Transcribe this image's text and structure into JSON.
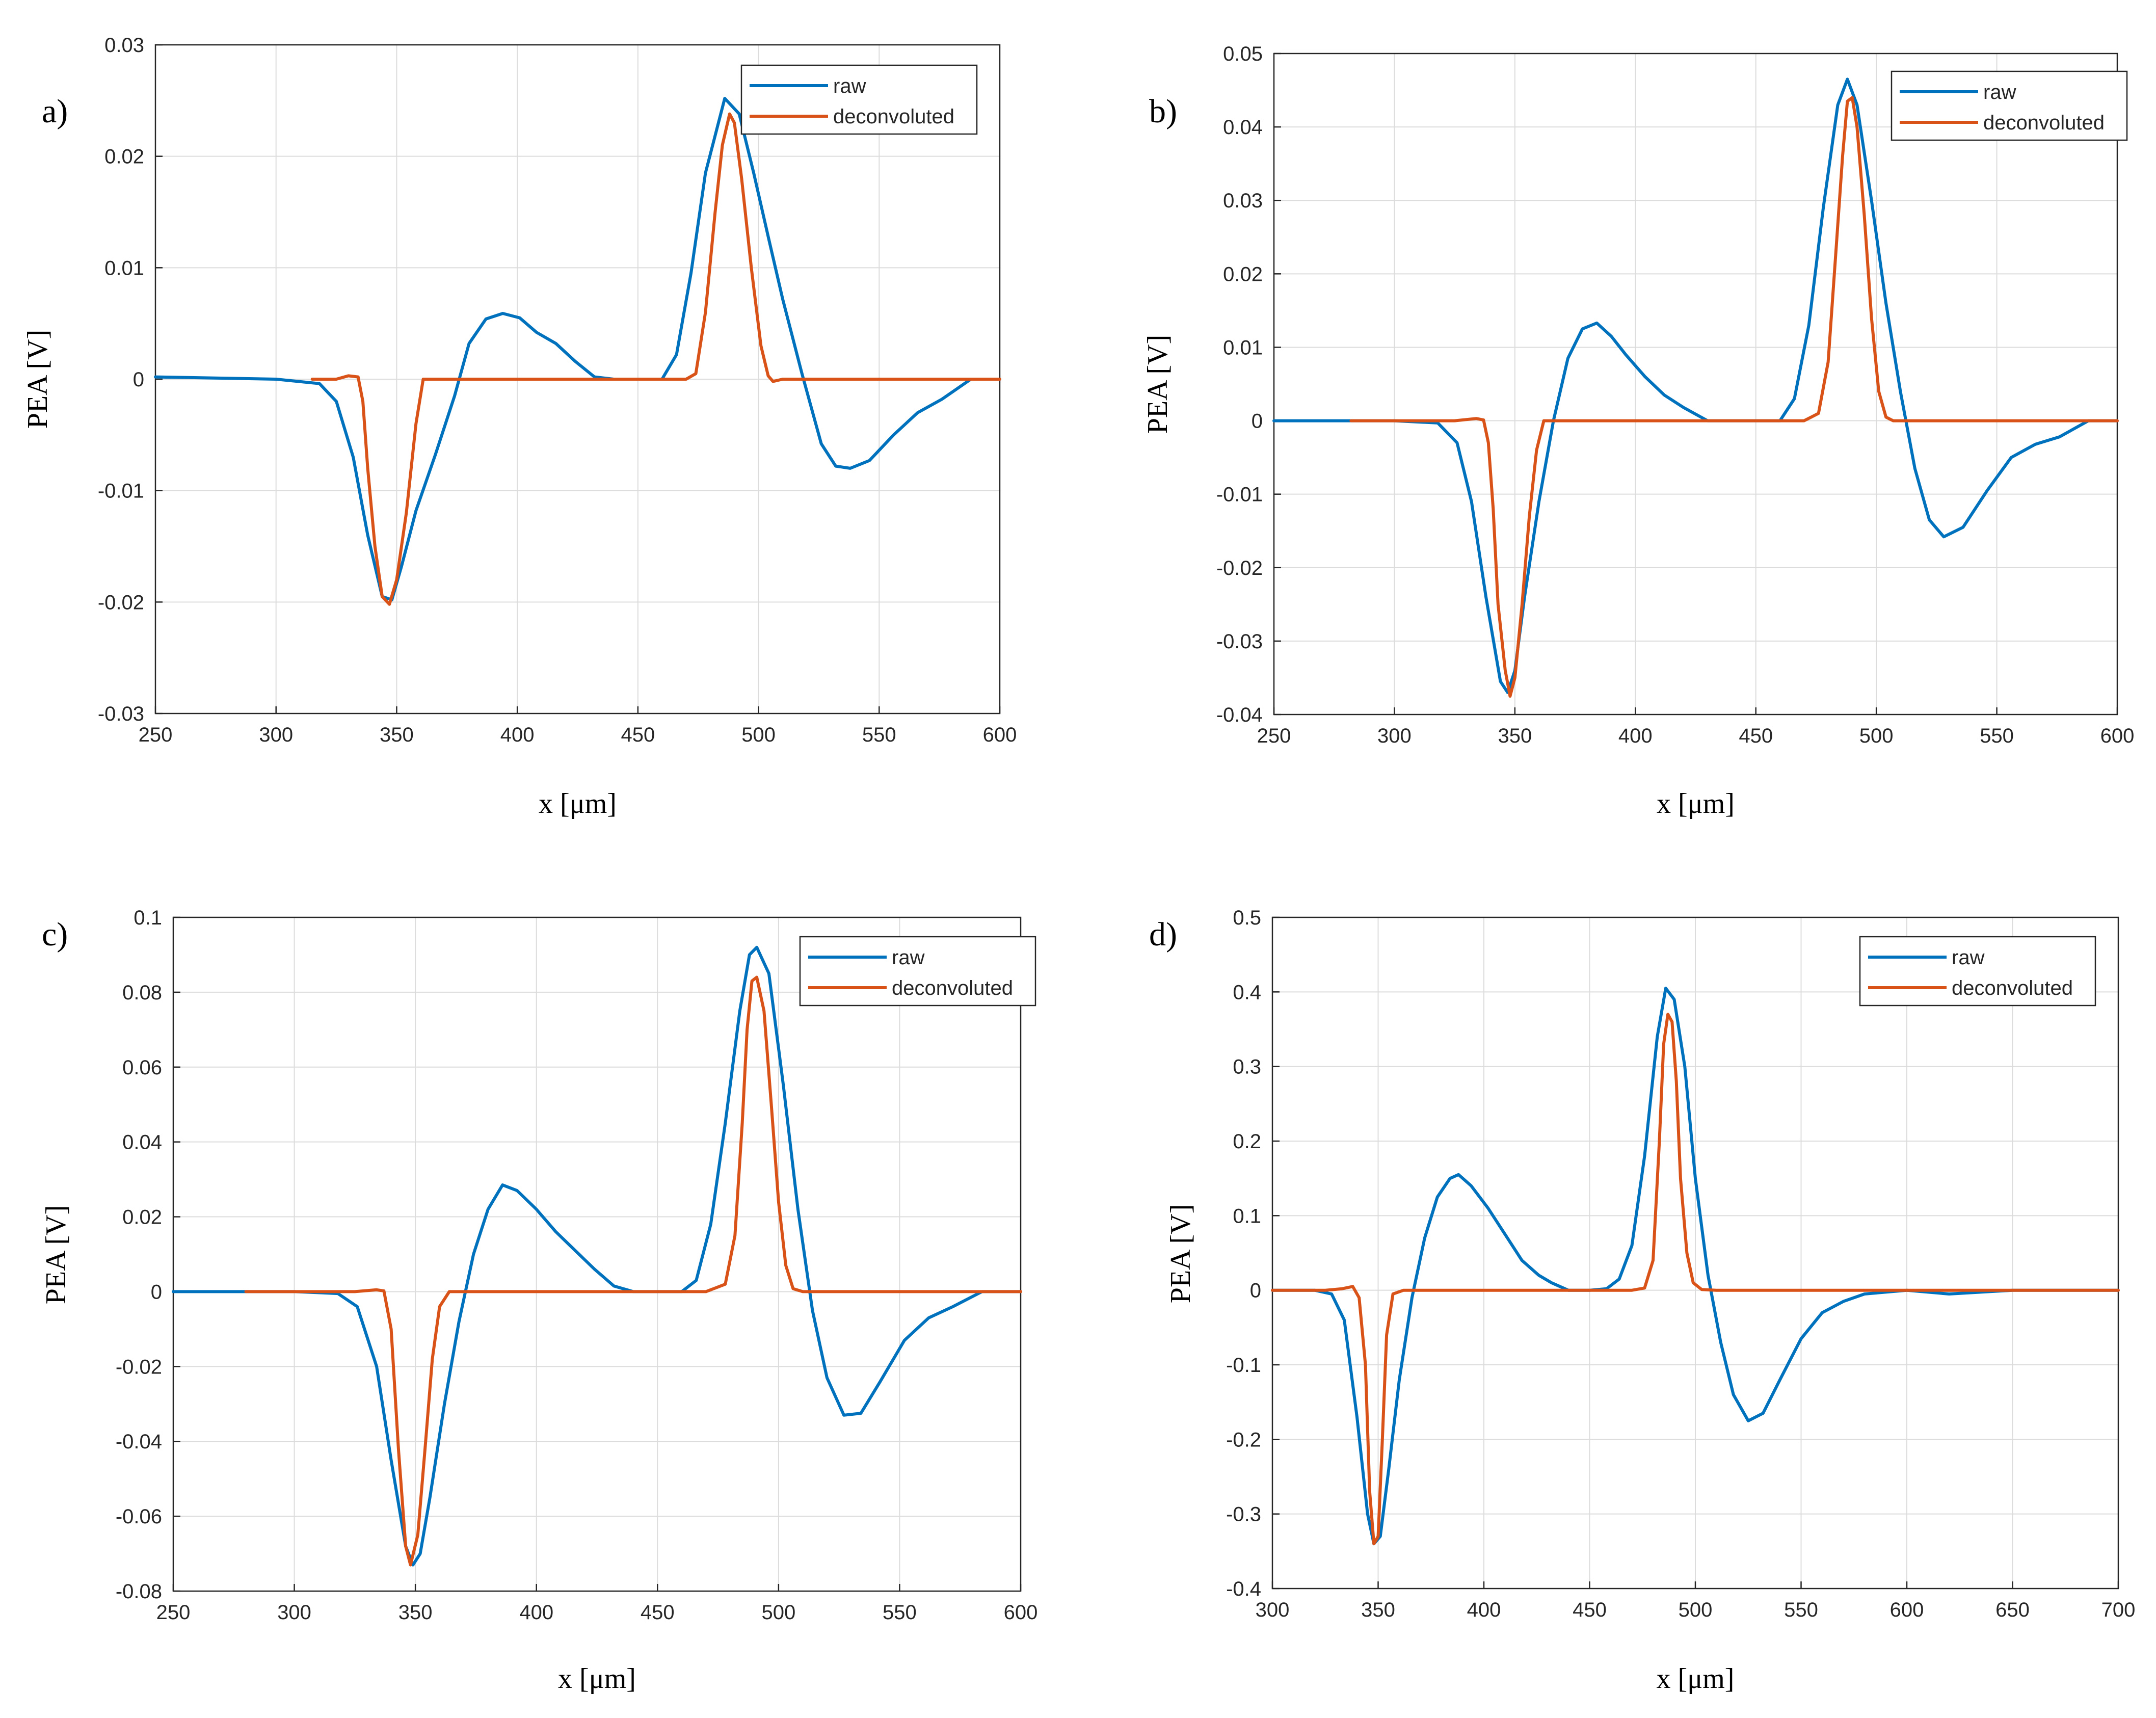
{
  "figure": {
    "colors": {
      "raw": "#0072BD",
      "deconvoluted": "#D95319",
      "grid": "#dcdcdc",
      "axis": "#262626"
    }
  },
  "chart_data": [
    {
      "type": "line",
      "panel_label": "a)",
      "xlabel": "x [μm]",
      "ylabel": "PEA [V]",
      "xlim": [
        250,
        600
      ],
      "ylim": [
        -0.03,
        0.03
      ],
      "xticks": [
        250,
        300,
        350,
        400,
        450,
        500,
        550,
        600
      ],
      "yticks": [
        -0.03,
        -0.02,
        -0.01,
        0,
        0.01,
        0.02,
        0.03
      ],
      "xtick_labels": [
        "250",
        "300",
        "350",
        "400",
        "450",
        "500",
        "550",
        "600"
      ],
      "ytick_labels": [
        "-0.03",
        "-0.02",
        "-0.01",
        "0",
        "0.01",
        "0.02",
        "0.03"
      ],
      "grid": true,
      "legend": {
        "position": "top-right",
        "entries": [
          "raw",
          "deconvoluted"
        ]
      },
      "series": [
        {
          "name": "raw",
          "color": "#0072BD",
          "x": [
            250,
            300,
            318,
            325,
            332,
            338,
            344,
            348,
            352,
            358,
            366,
            374,
            380,
            387,
            394,
            401,
            408,
            416,
            424,
            432,
            440,
            450,
            460,
            466,
            472,
            478,
            486,
            492,
            498,
            504,
            510,
            518,
            526,
            532,
            538,
            546,
            556,
            566,
            576,
            588,
            600
          ],
          "y": [
            0.0002,
            0.0,
            -0.0004,
            -0.002,
            -0.007,
            -0.014,
            -0.0195,
            -0.0198,
            -0.0168,
            -0.0118,
            -0.0068,
            -0.0015,
            0.0032,
            0.0054,
            0.0059,
            0.0055,
            0.0042,
            0.0032,
            0.0016,
            0.0002,
            0.0,
            0.0,
            0.0,
            0.0022,
            0.0095,
            0.0185,
            0.0252,
            0.0238,
            0.0185,
            0.0128,
            0.0072,
            0.0005,
            -0.0058,
            -0.0078,
            -0.008,
            -0.0073,
            -0.005,
            -0.003,
            -0.0018,
            0.0,
            0.0
          ]
        },
        {
          "name": "deconvoluted",
          "color": "#D95319",
          "x": [
            315,
            325,
            330,
            334,
            336,
            338,
            341,
            344,
            347,
            350,
            354,
            358,
            361,
            370,
            400,
            450,
            470,
            474,
            478,
            482,
            485,
            488,
            490,
            493,
            497,
            501,
            504,
            506,
            510,
            530,
            560,
            600
          ],
          "y": [
            0.0,
            0.0,
            0.0003,
            0.0002,
            -0.002,
            -0.008,
            -0.015,
            -0.0195,
            -0.0202,
            -0.018,
            -0.012,
            -0.004,
            0.0,
            0.0,
            0.0,
            0.0,
            0.0,
            0.0005,
            0.006,
            0.015,
            0.021,
            0.0238,
            0.023,
            0.018,
            0.01,
            0.003,
            0.0003,
            -0.0002,
            0.0,
            0.0,
            0.0,
            0.0
          ]
        }
      ]
    },
    {
      "type": "line",
      "panel_label": "b)",
      "xlabel": "x [μm]",
      "ylabel": "PEA [V]",
      "xlim": [
        250,
        600
      ],
      "ylim": [
        -0.04,
        0.05
      ],
      "xticks": [
        250,
        300,
        350,
        400,
        450,
        500,
        550,
        600
      ],
      "yticks": [
        -0.04,
        -0.03,
        -0.02,
        -0.01,
        0,
        0.01,
        0.02,
        0.03,
        0.04,
        0.05
      ],
      "xtick_labels": [
        "250",
        "300",
        "350",
        "400",
        "450",
        "500",
        "550",
        "600"
      ],
      "ytick_labels": [
        "-0.04",
        "-0.03",
        "-0.02",
        "-0.01",
        "0",
        "0.01",
        "0.02",
        "0.03",
        "0.04",
        "0.05"
      ],
      "grid": true,
      "legend": {
        "position": "top-right",
        "entries": [
          "raw",
          "deconvoluted"
        ]
      },
      "series": [
        {
          "name": "raw",
          "color": "#0072BD",
          "x": [
            250,
            300,
            318,
            326,
            332,
            338,
            344,
            347,
            350,
            354,
            360,
            366,
            372,
            378,
            384,
            390,
            396,
            404,
            412,
            420,
            430,
            440,
            450,
            460,
            466,
            472,
            478,
            484,
            488,
            492,
            498,
            504,
            510,
            516,
            522,
            528,
            536,
            546,
            556,
            566,
            576,
            588,
            600
          ],
          "y": [
            0.0,
            0.0,
            -0.0003,
            -0.003,
            -0.011,
            -0.024,
            -0.0355,
            -0.037,
            -0.034,
            -0.024,
            -0.011,
            0.0,
            0.0085,
            0.0125,
            0.0133,
            0.0115,
            0.009,
            0.006,
            0.0035,
            0.0018,
            0.0,
            0.0,
            0.0,
            0.0,
            0.003,
            0.013,
            0.029,
            0.043,
            0.0465,
            0.043,
            0.03,
            0.016,
            0.004,
            -0.0065,
            -0.0135,
            -0.0158,
            -0.0145,
            -0.0095,
            -0.005,
            -0.0032,
            -0.0022,
            0.0,
            0.0
          ]
        },
        {
          "name": "deconvoluted",
          "color": "#D95319",
          "x": [
            282,
            325,
            334,
            337,
            339,
            341,
            343,
            346,
            348,
            350,
            353,
            356,
            359,
            362,
            370,
            420,
            470,
            476,
            480,
            483,
            486,
            488,
            490,
            492,
            495,
            498,
            501,
            504,
            507,
            520,
            560,
            600
          ],
          "y": [
            0.0,
            0.0,
            0.0003,
            0.0001,
            -0.003,
            -0.012,
            -0.025,
            -0.034,
            -0.0375,
            -0.035,
            -0.025,
            -0.013,
            -0.004,
            0.0,
            0.0,
            0.0,
            0.0,
            0.001,
            0.008,
            0.022,
            0.036,
            0.0435,
            0.044,
            0.04,
            0.028,
            0.014,
            0.004,
            0.0005,
            0.0,
            0.0,
            0.0,
            0.0
          ]
        }
      ]
    },
    {
      "type": "line",
      "panel_label": "c)",
      "xlabel": "x [μm]",
      "ylabel": "PEA [V]",
      "xlim": [
        250,
        600
      ],
      "ylim": [
        -0.08,
        0.1
      ],
      "xticks": [
        250,
        300,
        350,
        400,
        450,
        500,
        550,
        600
      ],
      "yticks": [
        -0.08,
        -0.06,
        -0.04,
        -0.02,
        0,
        0.02,
        0.04,
        0.06,
        0.08,
        0.1
      ],
      "xtick_labels": [
        "250",
        "300",
        "350",
        "400",
        "450",
        "500",
        "550",
        "600"
      ],
      "ytick_labels": [
        "-0.08",
        "-0.06",
        "-0.04",
        "-0.02",
        "0",
        "0.02",
        "0.04",
        "0.06",
        "0.08",
        "0.1"
      ],
      "grid": true,
      "legend": {
        "position": "top-right",
        "entries": [
          "raw",
          "deconvoluted"
        ]
      },
      "series": [
        {
          "name": "raw",
          "color": "#0072BD",
          "x": [
            250,
            300,
            318,
            326,
            334,
            340,
            346,
            349,
            352,
            356,
            362,
            368,
            374,
            380,
            386,
            392,
            400,
            408,
            416,
            424,
            432,
            440,
            450,
            460,
            466,
            472,
            478,
            484,
            488,
            491,
            496,
            502,
            508,
            514,
            520,
            527,
            534,
            542,
            552,
            562,
            572,
            584,
            600
          ],
          "y": [
            0.0,
            0.0,
            -0.0005,
            -0.004,
            -0.02,
            -0.045,
            -0.068,
            -0.073,
            -0.07,
            -0.055,
            -0.03,
            -0.008,
            0.01,
            0.022,
            0.0285,
            0.027,
            0.022,
            0.016,
            0.011,
            0.006,
            0.0015,
            0.0,
            0.0,
            0.0,
            0.003,
            0.018,
            0.045,
            0.075,
            0.09,
            0.092,
            0.085,
            0.055,
            0.022,
            -0.005,
            -0.023,
            -0.033,
            -0.0325,
            -0.024,
            -0.013,
            -0.007,
            -0.004,
            0.0,
            0.0
          ]
        },
        {
          "name": "deconvoluted",
          "color": "#D95319",
          "x": [
            280,
            325,
            334,
            337,
            340,
            343,
            346,
            348,
            351,
            354,
            357,
            360,
            364,
            370,
            420,
            470,
            478,
            482,
            485,
            487,
            489,
            491,
            494,
            497,
            500,
            503,
            506,
            510,
            520,
            560,
            600
          ],
          "y": [
            0.0,
            0.0,
            0.0005,
            0.0002,
            -0.01,
            -0.042,
            -0.068,
            -0.073,
            -0.065,
            -0.042,
            -0.018,
            -0.004,
            0.0,
            0.0,
            0.0,
            0.0,
            0.002,
            0.015,
            0.045,
            0.07,
            0.083,
            0.084,
            0.075,
            0.05,
            0.024,
            0.007,
            0.0008,
            0.0,
            0.0,
            0.0,
            0.0
          ]
        }
      ]
    },
    {
      "type": "line",
      "panel_label": "d)",
      "xlabel": "x [μm]",
      "ylabel": "PEA [V]",
      "xlim": [
        300,
        700
      ],
      "ylim": [
        -0.4,
        0.5
      ],
      "xticks": [
        300,
        350,
        400,
        450,
        500,
        550,
        600,
        650,
        700
      ],
      "yticks": [
        -0.4,
        -0.3,
        -0.2,
        -0.1,
        0,
        0.1,
        0.2,
        0.3,
        0.4,
        0.5
      ],
      "xtick_labels": [
        "300",
        "350",
        "400",
        "450",
        "500",
        "550",
        "600",
        "650",
        "700"
      ],
      "ytick_labels": [
        "-0.4",
        "-0.3",
        "-0.2",
        "-0.1",
        "0",
        "0.1",
        "0.2",
        "0.3",
        "0.4",
        "0.5"
      ],
      "grid": true,
      "legend": {
        "position": "top-right",
        "entries": [
          "raw",
          "deconvoluted"
        ]
      },
      "series": [
        {
          "name": "raw",
          "color": "#0072BD",
          "x": [
            300,
            320,
            328,
            334,
            340,
            345,
            348,
            351,
            355,
            360,
            366,
            372,
            378,
            384,
            388,
            394,
            402,
            410,
            418,
            426,
            432,
            440,
            450,
            458,
            464,
            470,
            476,
            482,
            486,
            490,
            495,
            500,
            506,
            512,
            518,
            525,
            532,
            540,
            550,
            560,
            570,
            580,
            600,
            620,
            650,
            700
          ],
          "y": [
            0.0,
            0.0,
            -0.005,
            -0.04,
            -0.17,
            -0.3,
            -0.34,
            -0.33,
            -0.24,
            -0.12,
            -0.01,
            0.07,
            0.125,
            0.15,
            0.155,
            0.14,
            0.11,
            0.075,
            0.04,
            0.02,
            0.01,
            0.0,
            0.0,
            0.002,
            0.015,
            0.06,
            0.18,
            0.34,
            0.405,
            0.39,
            0.3,
            0.15,
            0.02,
            -0.07,
            -0.14,
            -0.175,
            -0.165,
            -0.12,
            -0.065,
            -0.03,
            -0.015,
            -0.005,
            0.0,
            -0.005,
            0.0,
            0.0
          ]
        },
        {
          "name": "deconvoluted",
          "color": "#D95319",
          "x": [
            300,
            325,
            333,
            338,
            341,
            344,
            346,
            348,
            350,
            352,
            354,
            357,
            362,
            370,
            420,
            470,
            476,
            480,
            483,
            485,
            487,
            489,
            491,
            493,
            496,
            499,
            503,
            510,
            560,
            620,
            700
          ],
          "y": [
            0.0,
            0.0,
            0.002,
            0.005,
            -0.01,
            -0.1,
            -0.27,
            -0.34,
            -0.33,
            -0.2,
            -0.06,
            -0.005,
            0.0,
            0.0,
            0.0,
            0.0,
            0.003,
            0.04,
            0.2,
            0.33,
            0.37,
            0.36,
            0.28,
            0.15,
            0.05,
            0.01,
            0.001,
            0.0,
            0.0,
            0.0,
            0.0
          ]
        }
      ]
    }
  ]
}
